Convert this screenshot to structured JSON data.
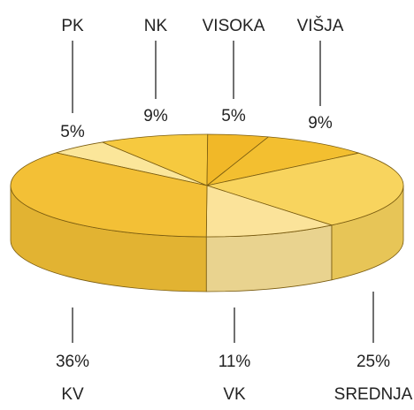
{
  "chart_data": {
    "type": "pie",
    "categories": [
      "PK",
      "NK",
      "VISOKA",
      "VIŠJA",
      "SREDNJA",
      "VK",
      "KV"
    ],
    "values": [
      5,
      9,
      5,
      9,
      25,
      11,
      36
    ],
    "value_labels": [
      "5%",
      "9%",
      "5%",
      "9%",
      "25%",
      "11%",
      "36%"
    ],
    "colors": [
      "#fbe69a",
      "#f6c93f",
      "#f1b828",
      "#f3bf30",
      "#f8d45e",
      "#fbe39a",
      "#f3c036"
    ]
  }
}
